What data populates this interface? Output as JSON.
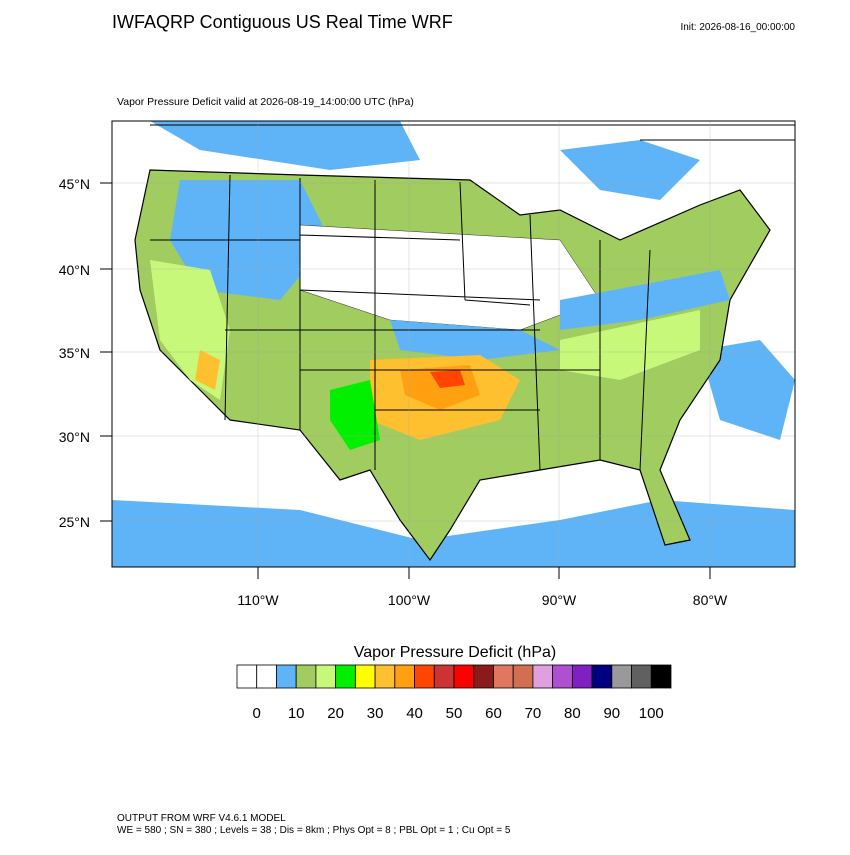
{
  "header": {
    "title": "IWFAQRP Contiguous US Real Time WRF",
    "init": "Init: 2026-08-16_00:00:00",
    "subtitle": "Vapor Pressure Deficit valid at 2026-08-19_14:00:00 UTC   (hPa)"
  },
  "map": {
    "lat_labels": [
      "45°N",
      "40°N",
      "35°N",
      "30°N",
      "25°N"
    ],
    "lon_labels": [
      "110°W",
      "100°W",
      "90°W",
      "80°W"
    ]
  },
  "colorbar": {
    "title": "Vapor Pressure Deficit  (hPa)",
    "colors": [
      "#ffffff",
      "#ffffff",
      "#5fb4f8",
      "#a0cc60",
      "#c8f87a",
      "#00f000",
      "#ffff00",
      "#ffc030",
      "#ffa010",
      "#ff4500",
      "#cc3333",
      "#ff0000",
      "#8b1a1a",
      "#e07860",
      "#d07050",
      "#e0a0e0",
      "#b050d0",
      "#8020c0",
      "#000080",
      "#999999",
      "#606060",
      "#000000"
    ],
    "labels": [
      0,
      10,
      20,
      30,
      40,
      50,
      60,
      70,
      80,
      90,
      100
    ]
  },
  "footer": {
    "line1": "OUTPUT FROM WRF V4.6.1 MODEL",
    "line2": "WE = 580 ; SN = 380 ; Levels = 38 ; Dis = 8km ; Phys Opt = 8 ; PBL Opt = 1 ; Cu Opt = 5"
  }
}
